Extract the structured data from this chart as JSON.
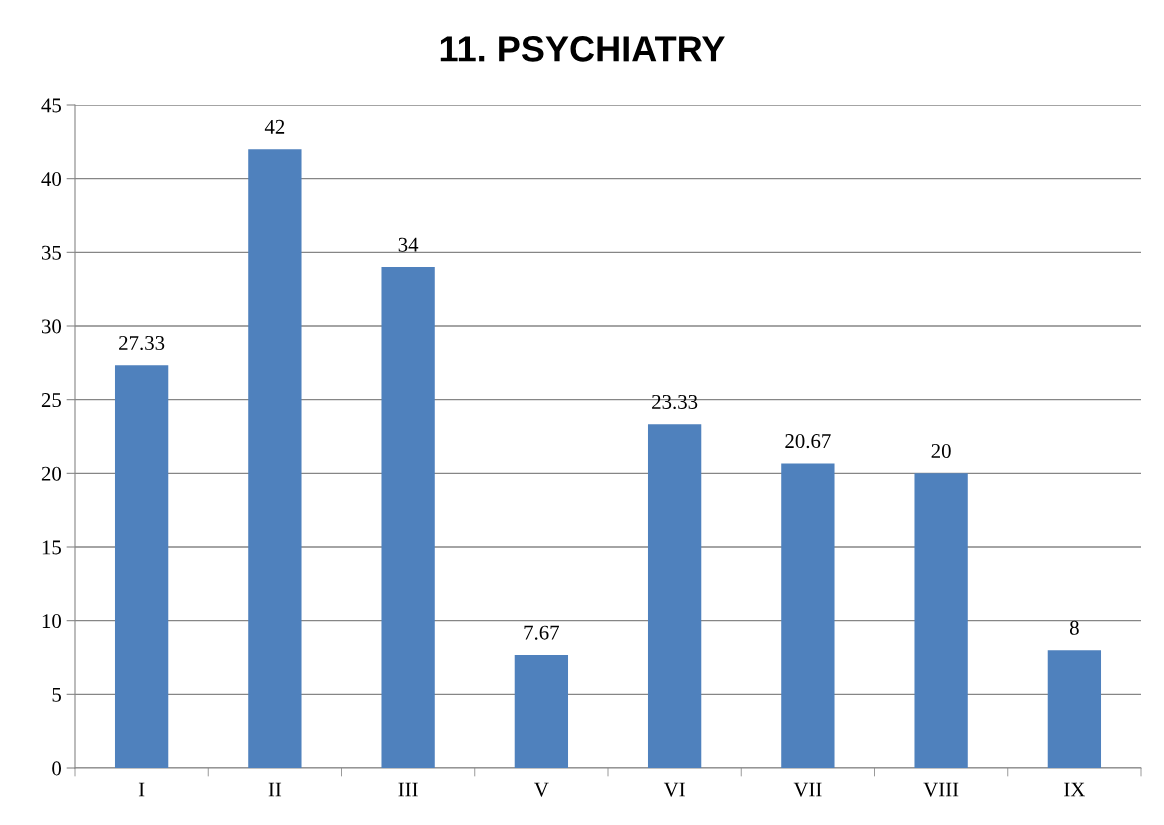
{
  "chart_data": {
    "type": "bar",
    "title": "11. PSYCHIATRY",
    "categories": [
      "I",
      "II",
      "III",
      "V",
      "VI",
      "VII",
      "VIII",
      "IX"
    ],
    "values": [
      27.33,
      42,
      34,
      7.67,
      23.33,
      20.67,
      20,
      8
    ],
    "color": "#4f81bd",
    "ylim": [
      0,
      45
    ],
    "yticks": [
      0,
      5,
      10,
      15,
      20,
      25,
      30,
      35,
      40,
      45
    ],
    "grid": "y",
    "data_labels": true
  }
}
